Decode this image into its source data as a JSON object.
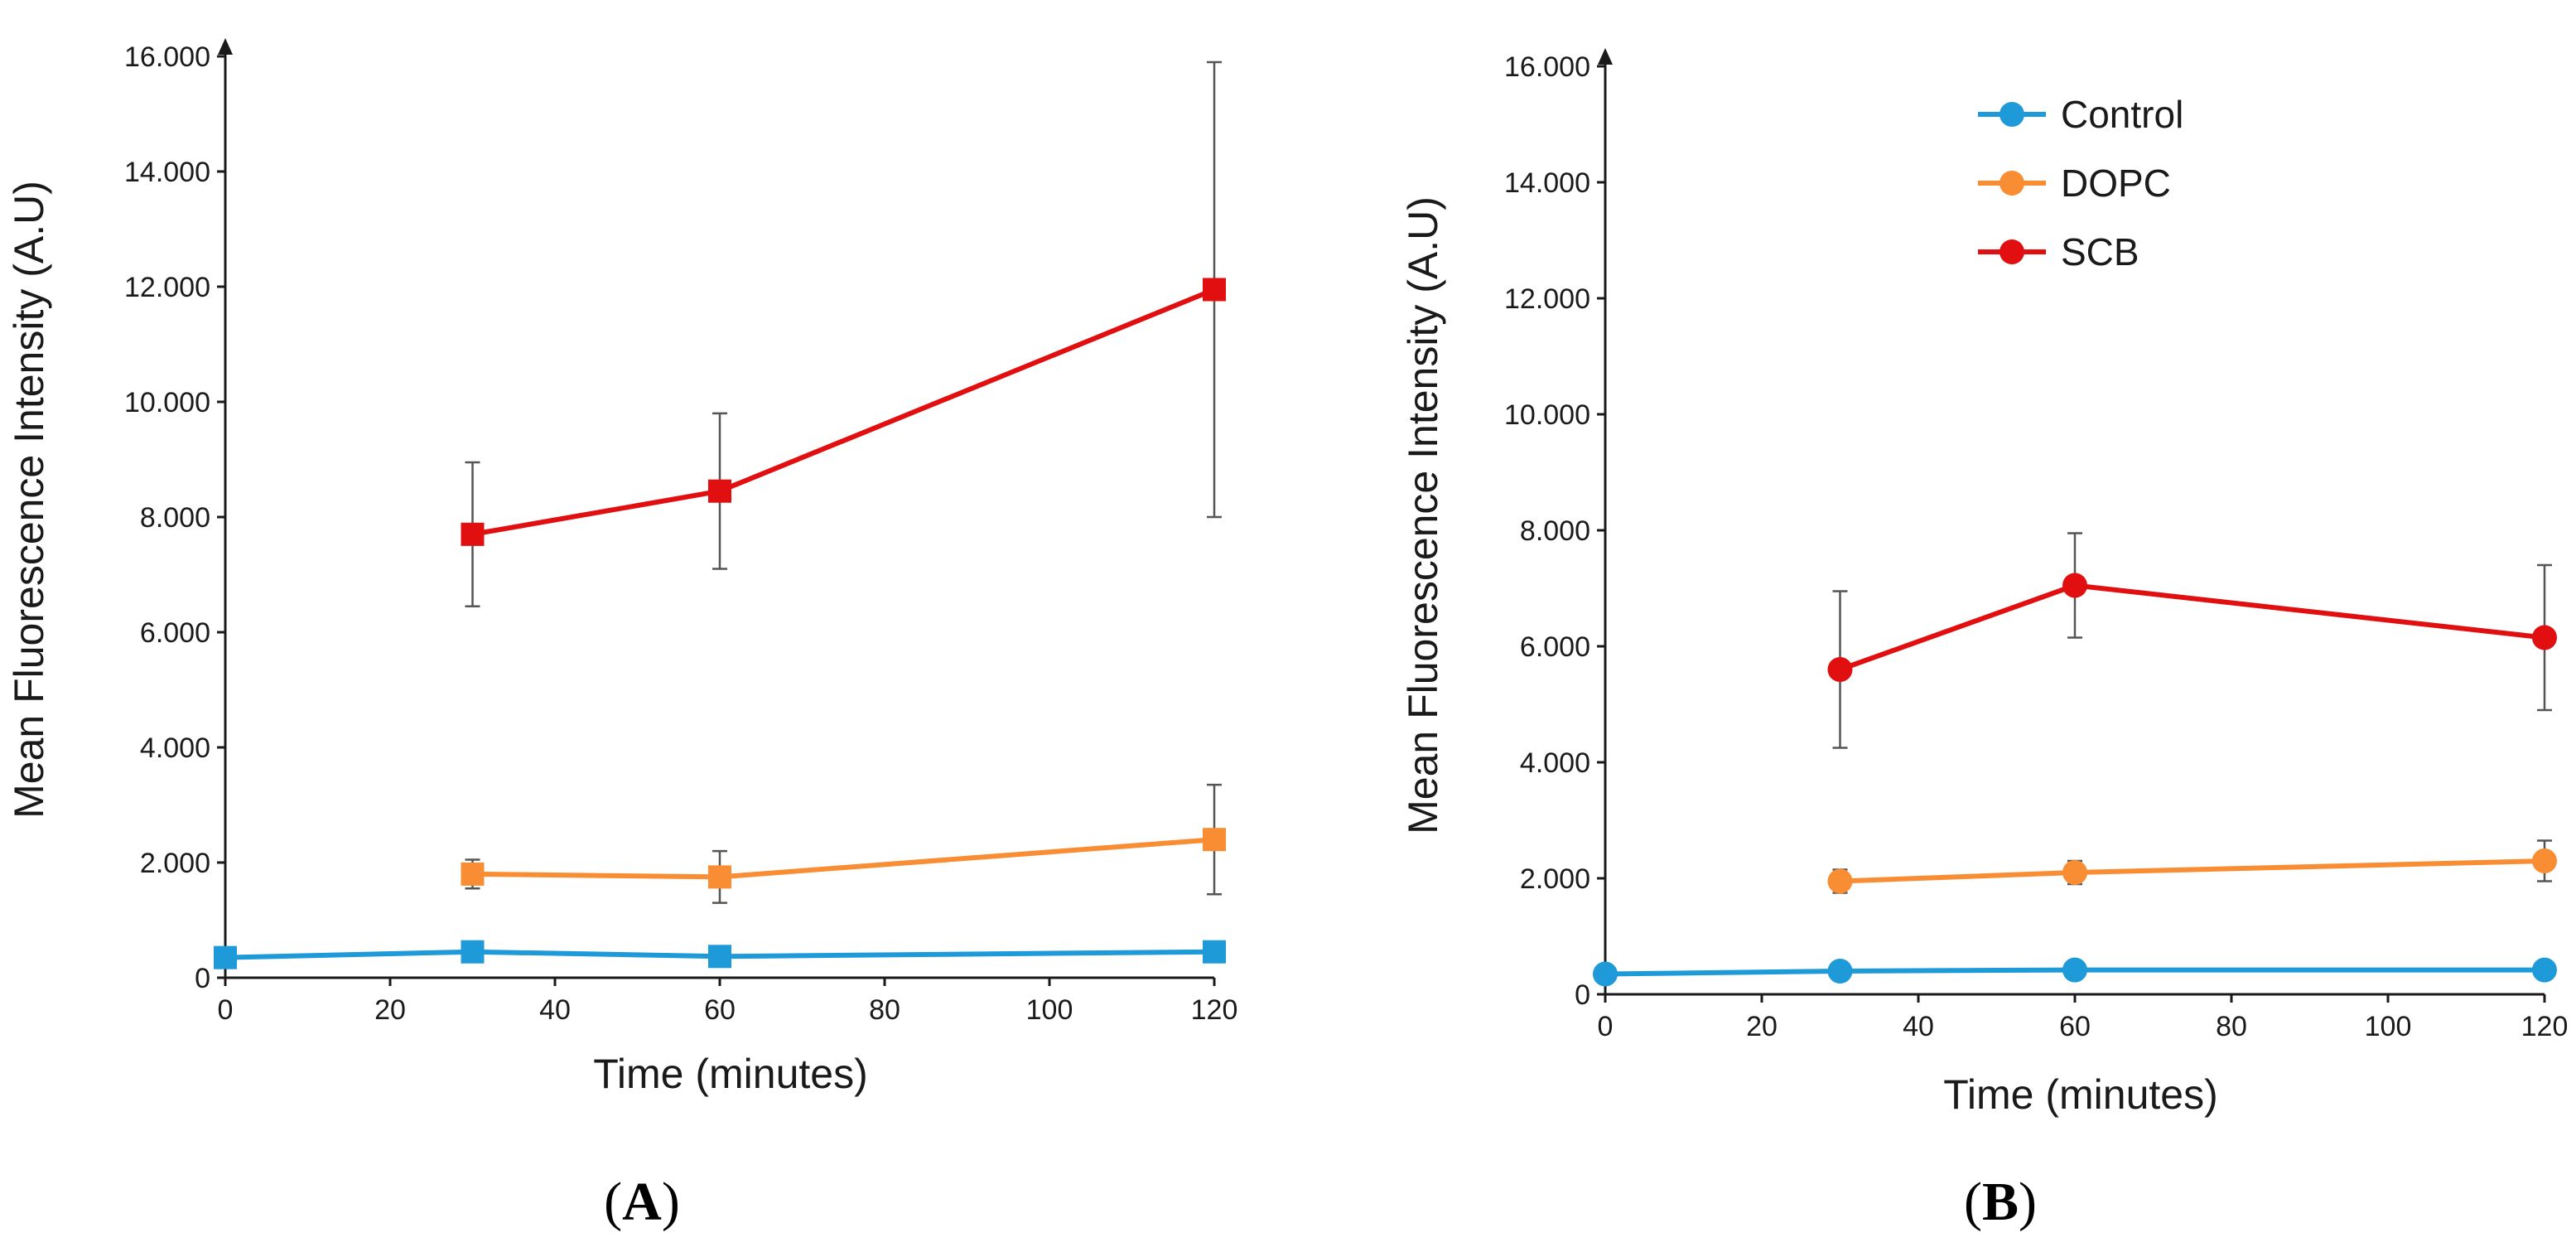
{
  "colors": {
    "Control": "#1f9ad9",
    "DOPC": "#f98d33",
    "SCB": "#e10f0f",
    "axis": "#1a1a1a",
    "errorbar": "#555555"
  },
  "chart_data": [
    {
      "type": "line",
      "panel_label": {
        "open": "(",
        "letter": "A",
        "close": ")"
      },
      "xlabel": "Time (minutes)",
      "ylabel": "Mean Fluorescence Intensity (A.U)",
      "xlim": [
        0,
        120
      ],
      "ylim": [
        0,
        16000
      ],
      "xticks": [
        0,
        20,
        40,
        60,
        80,
        100,
        120
      ],
      "xtick_labels": [
        "0",
        "20",
        "40",
        "60",
        "80",
        "100",
        "120"
      ],
      "yticks": [
        0,
        2000,
        4000,
        6000,
        8000,
        10000,
        12000,
        14000,
        16000
      ],
      "ytick_labels": [
        "0",
        "2.000",
        "4.000",
        "6.000",
        "8.000",
        "10.000",
        "12.000",
        "14.000",
        "16.000"
      ],
      "marker": "square",
      "legend": false,
      "series": [
        {
          "name": "Control",
          "x": [
            0,
            30,
            60,
            120
          ],
          "y": [
            350,
            450,
            370,
            450
          ],
          "err": [
            0,
            0,
            0,
            0
          ]
        },
        {
          "name": "DOPC",
          "x": [
            30,
            60,
            120
          ],
          "y": [
            1800,
            1750,
            2400
          ],
          "err": [
            250,
            450,
            950
          ]
        },
        {
          "name": "SCB",
          "x": [
            30,
            60,
            120
          ],
          "y": [
            7700,
            8450,
            11950
          ],
          "err": [
            1250,
            1350,
            3950
          ]
        }
      ]
    },
    {
      "type": "line",
      "panel_label": {
        "open": "(",
        "letter": "B",
        "close": ")"
      },
      "xlabel": "Time (minutes)",
      "ylabel": "Mean Fluorescence Intensity (A.U)",
      "xlim": [
        0,
        120
      ],
      "ylim": [
        0,
        16000
      ],
      "xticks": [
        0,
        20,
        40,
        60,
        80,
        100,
        120
      ],
      "xtick_labels": [
        "0",
        "20",
        "40",
        "60",
        "80",
        "100",
        "120"
      ],
      "yticks": [
        0,
        2000,
        4000,
        6000,
        8000,
        10000,
        12000,
        14000,
        16000
      ],
      "ytick_labels": [
        "0",
        "2.000",
        "4.000",
        "6.000",
        "8.000",
        "10.000",
        "12.000",
        "14.000",
        "16.000"
      ],
      "marker": "circle",
      "legend": true,
      "legend_position": "top-right",
      "series": [
        {
          "name": "Control",
          "x": [
            0,
            30,
            60,
            120
          ],
          "y": [
            350,
            400,
            420,
            420
          ],
          "err": [
            0,
            0,
            0,
            0
          ]
        },
        {
          "name": "DOPC",
          "x": [
            30,
            60,
            120
          ],
          "y": [
            1950,
            2100,
            2300
          ],
          "err": [
            200,
            200,
            350
          ]
        },
        {
          "name": "SCB",
          "x": [
            30,
            60,
            120
          ],
          "y": [
            5600,
            7050,
            6150
          ],
          "err": [
            1350,
            900,
            1250
          ]
        }
      ]
    }
  ]
}
